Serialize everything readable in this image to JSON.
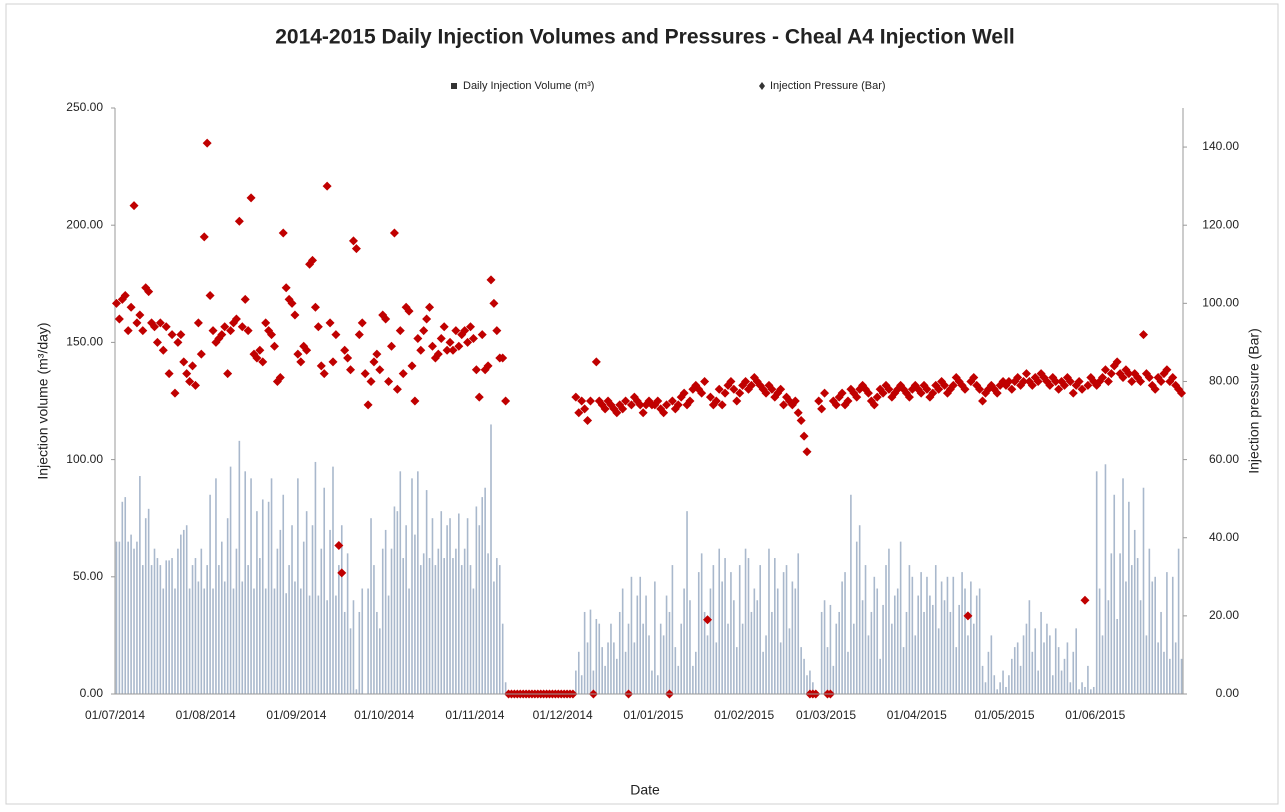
{
  "chart_data": {
    "type": "bar",
    "title": "2014-2015 Daily Injection Volumes and Pressures - Cheal A4 Injection Well",
    "x_label": "Date",
    "y_label": "Injection volume (m³/day)",
    "y2_label": "Injection pressure (Bar)",
    "categories": [
      "01/07/2014",
      null,
      null,
      null,
      null,
      null,
      null,
      null,
      null,
      null,
      null,
      null,
      null,
      null,
      null,
      null,
      null,
      null,
      null,
      null,
      null,
      null,
      null,
      null,
      null,
      null,
      null,
      null,
      null,
      null,
      null,
      "01/08/2014",
      null,
      null,
      null,
      null,
      null,
      null,
      null,
      null,
      null,
      null,
      null,
      null,
      null,
      null,
      null,
      null,
      null,
      null,
      null,
      null,
      null,
      null,
      null,
      null,
      null,
      null,
      null,
      null,
      null,
      null,
      "01/09/2014",
      null,
      null,
      null,
      null,
      null,
      null,
      null,
      null,
      null,
      null,
      null,
      null,
      null,
      null,
      null,
      null,
      null,
      null,
      null,
      null,
      null,
      null,
      null,
      null,
      null,
      null,
      null,
      null,
      null,
      "01/10/2014",
      null,
      null,
      null,
      null,
      null,
      null,
      null,
      null,
      null,
      null,
      null,
      null,
      null,
      null,
      null,
      null,
      null,
      null,
      null,
      null,
      null,
      null,
      null,
      null,
      null,
      null,
      null,
      null,
      null,
      null,
      "01/11/2014",
      null,
      null,
      null,
      null,
      null,
      null,
      null,
      null,
      null,
      null,
      null,
      null,
      null,
      null,
      null,
      null,
      null,
      null,
      null,
      null,
      null,
      null,
      null,
      null,
      null,
      null,
      null,
      null,
      null,
      "01/12/2014",
      null,
      null,
      null,
      null,
      null,
      null,
      null,
      null,
      null,
      null,
      null,
      null,
      null,
      null,
      null,
      null,
      null,
      null,
      null,
      null,
      null,
      null,
      null,
      null,
      null,
      null,
      null,
      null,
      null,
      null,
      "01/01/2015",
      null,
      null,
      null,
      null,
      null,
      null,
      null,
      null,
      null,
      null,
      null,
      null,
      null,
      null,
      null,
      null,
      null,
      null,
      null,
      null,
      null,
      null,
      null,
      null,
      null,
      null,
      null,
      null,
      null,
      null,
      "01/02/2015",
      null,
      null,
      null,
      null,
      null,
      null,
      null,
      null,
      null,
      null,
      null,
      null,
      null,
      null,
      null,
      null,
      null,
      null,
      null,
      null,
      null,
      null,
      null,
      null,
      null,
      null,
      null,
      "01/03/2015",
      null,
      null,
      null,
      null,
      null,
      null,
      null,
      null,
      null,
      null,
      null,
      null,
      null,
      null,
      null,
      null,
      null,
      null,
      null,
      null,
      null,
      null,
      null,
      null,
      null,
      null,
      null,
      null,
      null,
      null,
      "01/04/2015",
      null,
      null,
      null,
      null,
      null,
      null,
      null,
      null,
      null,
      null,
      null,
      null,
      null,
      null,
      null,
      null,
      null,
      null,
      null,
      null,
      null,
      null,
      null,
      null,
      null,
      null,
      null,
      null,
      null,
      "01/05/2015",
      null,
      null,
      null,
      null,
      null,
      null,
      null,
      null,
      null,
      null,
      null,
      null,
      null,
      null,
      null,
      null,
      null,
      null,
      null,
      null,
      null,
      null,
      null,
      null,
      null,
      null,
      null,
      null,
      null,
      null,
      "01/06/2015",
      null,
      null,
      null,
      null,
      null,
      null,
      null,
      null,
      null,
      null,
      null,
      null,
      null,
      null,
      null,
      null,
      null,
      null,
      null,
      null,
      null,
      null,
      null,
      null,
      null,
      null,
      null,
      null,
      null
    ],
    "series": [
      {
        "name": "Daily Injection Volume (m³)",
        "type": "bar",
        "color": "#a9b8cc",
        "values": [
          65,
          65,
          82,
          84,
          65,
          68,
          62,
          65,
          93,
          55,
          75,
          79,
          55,
          62,
          58,
          55,
          45,
          57,
          57,
          58,
          45,
          62,
          68,
          70,
          72,
          45,
          55,
          58,
          48,
          62,
          45,
          55,
          85,
          45,
          92,
          55,
          65,
          48,
          75,
          97,
          45,
          62,
          108,
          48,
          95,
          55,
          92,
          45,
          78,
          58,
          83,
          45,
          82,
          92,
          45,
          62,
          70,
          85,
          43,
          55,
          72,
          48,
          92,
          45,
          65,
          78,
          42,
          72,
          99,
          42,
          62,
          88,
          40,
          70,
          97,
          42,
          55,
          72,
          35,
          60,
          28,
          40,
          2,
          35,
          45,
          0,
          45,
          75,
          55,
          35,
          28,
          62,
          70,
          42,
          62,
          80,
          78,
          95,
          58,
          72,
          45,
          92,
          68,
          95,
          55,
          60,
          87,
          58,
          75,
          55,
          62,
          78,
          58,
          72,
          75,
          58,
          62,
          77,
          55,
          62,
          75,
          55,
          45,
          80,
          72,
          84,
          88,
          60,
          115,
          48,
          58,
          55,
          30,
          5,
          0,
          0,
          0,
          0,
          0,
          0,
          0,
          0,
          0,
          0,
          0,
          0,
          0,
          0,
          0,
          0,
          0,
          0,
          0,
          0,
          0,
          0,
          0,
          10,
          18,
          8,
          35,
          22,
          36,
          10,
          32,
          30,
          20,
          12,
          22,
          30,
          22,
          15,
          35,
          45,
          18,
          30,
          50,
          22,
          42,
          50,
          30,
          42,
          25,
          10,
          48,
          8,
          30,
          25,
          42,
          35,
          55,
          20,
          12,
          30,
          45,
          78,
          40,
          12,
          18,
          52,
          60,
          35,
          25,
          45,
          55,
          22,
          62,
          48,
          58,
          30,
          52,
          40,
          20,
          55,
          30,
          62,
          58,
          35,
          45,
          40,
          55,
          18,
          25,
          62,
          35,
          58,
          45,
          22,
          52,
          55,
          28,
          48,
          45,
          60,
          20,
          15,
          8,
          10,
          5,
          0,
          0,
          35,
          40,
          20,
          38,
          12,
          30,
          35,
          48,
          52,
          18,
          85,
          30,
          65,
          72,
          40,
          55,
          25,
          35,
          50,
          45,
          15,
          38,
          55,
          62,
          30,
          42,
          45,
          65,
          20,
          35,
          55,
          50,
          25,
          42,
          52,
          35,
          50,
          42,
          38,
          55,
          28,
          48,
          40,
          50,
          35,
          50,
          20,
          38,
          52,
          45,
          25,
          48,
          30,
          42,
          45,
          12,
          5,
          18,
          25,
          8,
          2,
          5,
          10,
          3,
          8,
          15,
          20,
          22,
          12,
          25,
          30,
          40,
          18,
          28,
          10,
          35,
          22,
          30,
          25,
          8,
          28,
          20,
          10,
          15,
          22,
          5,
          18,
          28,
          2,
          5,
          3,
          12,
          2,
          3,
          95,
          45,
          25,
          98,
          40,
          60,
          85,
          32,
          60,
          92,
          48,
          82,
          55,
          70,
          58,
          40,
          88,
          25,
          62,
          48,
          50,
          22,
          35,
          18,
          52,
          15,
          50,
          22,
          62,
          15
        ]
      },
      {
        "name": "Injection Pressure (Bar)",
        "type": "scatter",
        "axis": "y2",
        "color": "#c00000",
        "values": [
          100,
          96,
          101,
          102,
          93,
          99,
          125,
          95,
          97,
          93,
          104,
          103,
          95,
          94,
          90,
          95,
          88,
          94,
          82,
          92,
          77,
          90,
          92,
          85,
          82,
          80,
          84,
          79,
          95,
          87,
          117,
          141,
          102,
          93,
          90,
          91,
          92,
          94,
          82,
          93,
          95,
          96,
          121,
          94,
          101,
          93,
          127,
          87,
          86,
          88,
          85,
          95,
          93,
          92,
          89,
          80,
          81,
          118,
          104,
          101,
          100,
          97,
          87,
          85,
          89,
          88,
          110,
          111,
          99,
          94,
          84,
          82,
          130,
          95,
          85,
          92,
          38,
          31,
          88,
          86,
          83,
          116,
          114,
          92,
          95,
          82,
          74,
          80,
          85,
          87,
          83,
          97,
          96,
          80,
          89,
          118,
          78,
          93,
          82,
          99,
          98,
          84,
          75,
          91,
          88,
          93,
          96,
          99,
          89,
          86,
          87,
          91,
          94,
          88,
          90,
          88,
          93,
          89,
          92,
          93,
          90,
          94,
          91,
          83,
          76,
          92,
          83,
          84,
          106,
          100,
          93,
          86,
          86,
          75,
          0,
          0,
          0,
          0,
          0,
          0,
          0,
          0,
          0,
          0,
          0,
          0,
          0,
          0,
          0,
          0,
          0,
          0,
          0,
          0,
          0,
          0,
          0,
          76,
          72,
          75,
          73,
          70,
          75,
          0,
          85,
          75,
          74,
          73,
          75,
          74,
          73,
          72,
          74,
          73,
          75,
          0,
          74,
          76,
          75,
          74,
          72,
          74,
          75,
          74,
          74,
          75,
          73,
          72,
          74,
          0,
          75,
          73,
          74,
          76,
          77,
          74,
          75,
          78,
          79,
          78,
          77,
          80,
          19,
          76,
          74,
          75,
          78,
          74,
          77,
          79,
          80,
          78,
          75,
          77,
          79,
          80,
          78,
          79,
          81,
          80,
          79,
          78,
          77,
          79,
          78,
          76,
          77,
          78,
          74,
          76,
          75,
          74,
          75,
          72,
          70,
          66,
          62,
          0,
          0,
          0,
          75,
          73,
          77,
          0,
          0,
          75,
          74,
          76,
          77,
          74,
          75,
          78,
          77,
          76,
          78,
          79,
          78,
          77,
          75,
          74,
          76,
          78,
          77,
          79,
          78,
          76,
          77,
          78,
          79,
          78,
          77,
          76,
          78,
          79,
          78,
          77,
          79,
          78,
          76,
          77,
          79,
          78,
          80,
          79,
          77,
          78,
          79,
          81,
          80,
          79,
          78,
          20,
          80,
          81,
          79,
          78,
          75,
          77,
          78,
          79,
          78,
          77,
          79,
          80,
          79,
          80,
          78,
          80,
          81,
          79,
          80,
          82,
          80,
          79,
          81,
          80,
          82,
          81,
          80,
          79,
          81,
          80,
          78,
          80,
          79,
          81,
          80,
          77,
          79,
          80,
          78,
          24,
          79,
          81,
          80,
          79,
          80,
          81,
          83,
          80,
          82,
          84,
          85,
          82,
          81,
          83,
          82,
          80,
          82,
          81,
          80,
          92,
          82,
          81,
          79,
          78,
          81,
          80,
          82,
          83,
          80,
          81,
          79,
          78,
          77
        ]
      }
    ],
    "ylim": [
      0,
      250
    ],
    "yticks": [
      {
        "value": 0,
        "label": "0.00"
      },
      {
        "value": 50,
        "label": "50.00"
      },
      {
        "value": 100,
        "label": "100.00"
      },
      {
        "value": 150,
        "label": "150.00"
      },
      {
        "value": 200,
        "label": "200.00"
      },
      {
        "value": 250,
        "label": "250.00"
      }
    ],
    "y2lim": [
      0,
      150
    ],
    "y2ticks": [
      {
        "value": 0,
        "label": "0.00"
      },
      {
        "value": 20,
        "label": "20.00"
      },
      {
        "value": 40,
        "label": "40.00"
      },
      {
        "value": 60,
        "label": "60.00"
      },
      {
        "value": 80,
        "label": "80.00"
      },
      {
        "value": 100,
        "label": "100.00"
      },
      {
        "value": 120,
        "label": "120.00"
      },
      {
        "value": 140,
        "label": "140.00"
      }
    ],
    "legend": "top"
  }
}
